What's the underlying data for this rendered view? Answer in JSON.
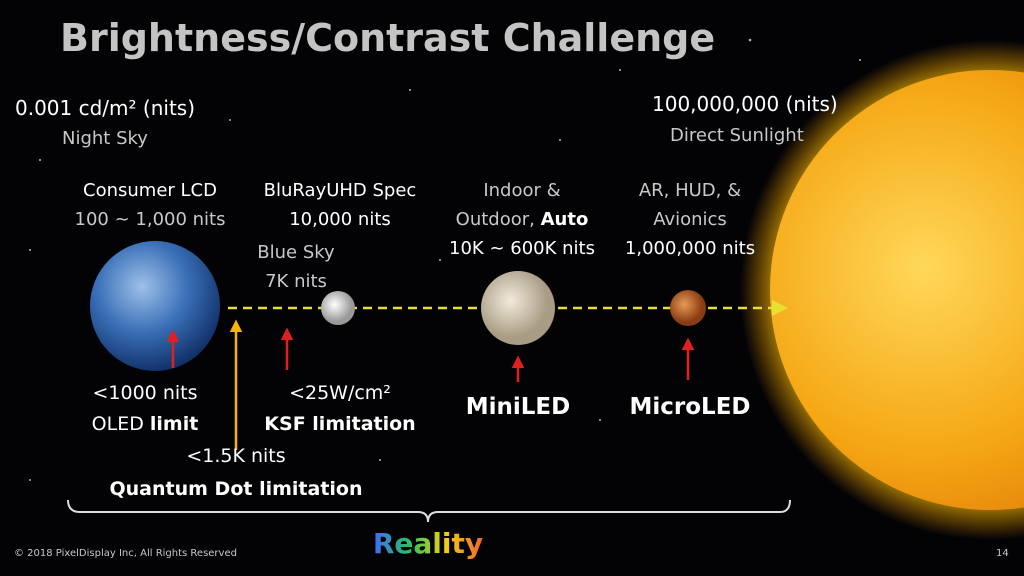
{
  "title": "Brightness/Contrast Challenge",
  "ends": [
    {
      "value": "0.001 cd/m²",
      "unit": "(nits)",
      "label": "Night Sky"
    },
    {
      "value": "100,000,000",
      "unit": "(nits)",
      "label": "Direct Sunlight"
    }
  ],
  "sources": [
    {
      "lines": [
        "Consumer LCD",
        "100 ~ 1,000 nits"
      ]
    },
    {
      "lines": [
        "BluRayUHD Spec",
        "10,000 nits"
      ]
    },
    {
      "lines": [
        "Blue Sky",
        "7K nits"
      ]
    },
    {
      "lines": [
        "Indoor &",
        "Outdoor,",
        "Auto",
        "10K ~ 600K nits"
      ]
    },
    {
      "lines": [
        "AR, HUD, &",
        "Avionics",
        "1,000,000 nits"
      ]
    }
  ],
  "limits": [
    {
      "lines": [
        "<1000 nits",
        "OLED",
        "limit"
      ]
    },
    {
      "lines": [
        "<25W/cm²",
        "KSF limitation"
      ]
    },
    {
      "lines": [
        "<1.5K nits",
        "Quantum Dot limitation"
      ]
    }
  ],
  "technologies": [
    "MiniLED",
    "MicroLED"
  ],
  "bracket_label": "Reality",
  "footer": {
    "copyright": "© 2018 PixelDisplay Inc, All Rights Reserved",
    "page": "14"
  }
}
